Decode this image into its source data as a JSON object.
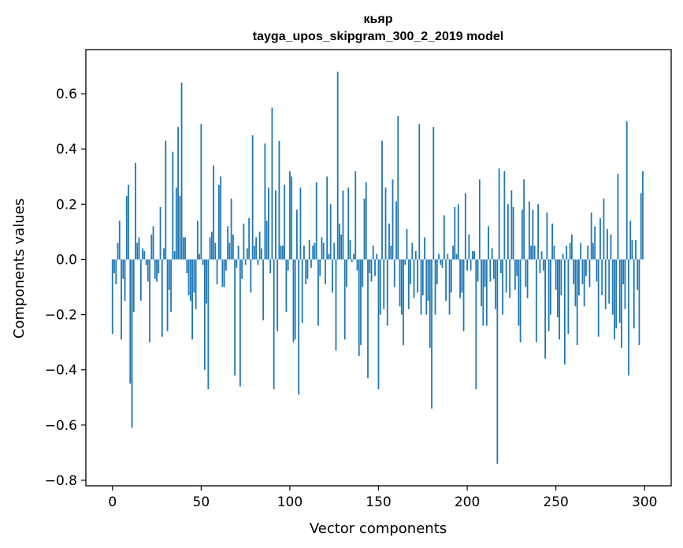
{
  "chart_data": {
    "type": "bar",
    "title_line1": "кьяр",
    "title_line2": "tayga_upos_skipgram_300_2_2019 model",
    "xlabel": "Vector components",
    "ylabel": "Components values",
    "xlim": [
      -15,
      315
    ],
    "ylim": [
      -0.82,
      0.76
    ],
    "xticks": [
      0,
      50,
      100,
      150,
      200,
      250,
      300
    ],
    "yticks": [
      -0.8,
      -0.6,
      -0.4,
      -0.2,
      0.0,
      0.2,
      0.4,
      0.6
    ],
    "ytick_labels": [
      "−0.8",
      "−0.6",
      "−0.4",
      "−0.2",
      "0.0",
      "0.2",
      "0.4",
      "0.6"
    ],
    "bar_color": "#1f77b4",
    "values": [
      -0.27,
      -0.05,
      -0.09,
      0.06,
      0.14,
      -0.29,
      -0.07,
      -0.15,
      0.23,
      0.27,
      -0.45,
      -0.61,
      -0.19,
      0.35,
      0.06,
      0.08,
      -0.15,
      0.04,
      0.03,
      -0.02,
      -0.08,
      -0.3,
      0.09,
      0.12,
      -0.07,
      -0.08,
      -0.05,
      0.19,
      -0.28,
      0.04,
      0.43,
      -0.26,
      -0.11,
      -0.19,
      0.39,
      0.03,
      0.26,
      0.48,
      0.23,
      0.64,
      0.08,
      0.08,
      -0.05,
      -0.13,
      -0.15,
      -0.29,
      -0.12,
      -0.18,
      0.14,
      0.02,
      0.49,
      -0.02,
      -0.4,
      -0.16,
      -0.47,
      0.08,
      0.1,
      0.34,
      0.06,
      -0.09,
      0.27,
      0.3,
      -0.1,
      -0.1,
      -0.04,
      0.12,
      0.06,
      0.22,
      0.09,
      -0.42,
      -0.03,
      0.05,
      -0.46,
      -0.07,
      0.13,
      -0.02,
      0.04,
      0.15,
      -0.12,
      0.45,
      0.05,
      0.08,
      -0.02,
      0.1,
      0.04,
      -0.22,
      0.42,
      0.14,
      0.26,
      -0.05,
      0.55,
      -0.47,
      0.25,
      -0.26,
      0.43,
      0.05,
      0.05,
      0.27,
      -0.19,
      -0.04,
      0.32,
      0.3,
      -0.3,
      -0.29,
      0.18,
      -0.49,
      0.26,
      -0.23,
      0.05,
      -0.09,
      -0.07,
      0.07,
      -0.03,
      0.05,
      0.06,
      0.28,
      -0.24,
      -0.06,
      0.08,
      0.06,
      -0.09,
      0.3,
      0.02,
      0.2,
      -0.12,
      0.06,
      -0.33,
      0.68,
      0.13,
      0.09,
      0.25,
      -0.29,
      -0.1,
      0.26,
      0.07,
      -0.01,
      0.02,
      0.32,
      -0.04,
      -0.35,
      -0.31,
      -0.1,
      0.22,
      0.28,
      -0.43,
      -0.05,
      -0.08,
      0.05,
      -0.06,
      0.02,
      -0.47,
      -0.2,
      0.43,
      -0.18,
      0.26,
      -0.24,
      0.13,
      0.05,
      0.29,
      -0.1,
      0.21,
      0.52,
      -0.17,
      -0.2,
      -0.31,
      -0.02,
      0.11,
      -0.18,
      -0.09,
      0.06,
      -0.14,
      0.03,
      -0.12,
      0.49,
      -0.2,
      -0.13,
      0.08,
      -0.2,
      -0.15,
      -0.32,
      -0.54,
      0.48,
      -0.2,
      -0.09,
      0.02,
      -0.02,
      -0.03,
      0.16,
      -0.15,
      0.02,
      -0.2,
      -0.12,
      0.05,
      0.19,
      0.02,
      0.2,
      -0.14,
      -0.12,
      -0.26,
      0.24,
      -0.04,
      0.09,
      -0.04,
      0.03,
      0.03,
      -0.47,
      -0.08,
      0.29,
      -0.17,
      -0.24,
      -0.1,
      -0.24,
      0.12,
      -0.08,
      0.04,
      -0.07,
      -0.18,
      -0.74,
      0.33,
      -0.05,
      -0.2,
      0.32,
      -0.12,
      0.2,
      -0.14,
      0.25,
      0.19,
      -0.11,
      -0.06,
      -0.24,
      -0.3,
      0.18,
      0.29,
      -0.1,
      -0.14,
      0.21,
      0.05,
      0.18,
      0.05,
      -0.3,
      0.2,
      -0.05,
      0.03,
      -0.04,
      -0.36,
      0.17,
      -0.26,
      -0.2,
      0.13,
      0.05,
      -0.11,
      -0.21,
      -0.29,
      -0.13,
      0.02,
      -0.38,
      0.05,
      -0.27,
      0.06,
      0.09,
      -0.09,
      -0.17,
      -0.31,
      -0.13,
      0.06,
      -0.09,
      -0.17,
      -0.06,
      0.05,
      -0.1,
      0.17,
      0.06,
      0.12,
      -0.08,
      -0.28,
      0.15,
      -0.13,
      0.22,
      -0.18,
      0.11,
      -0.16,
      0.09,
      -0.2,
      -0.29,
      -0.25,
      0.31,
      -0.23,
      -0.32,
      -0.09,
      -0.18,
      0.5,
      -0.42,
      0.14,
      0.07,
      -0.25,
      0.07,
      -0.11,
      -0.31,
      0.24,
      0.32
    ],
    "grid": false,
    "legend": "none"
  }
}
